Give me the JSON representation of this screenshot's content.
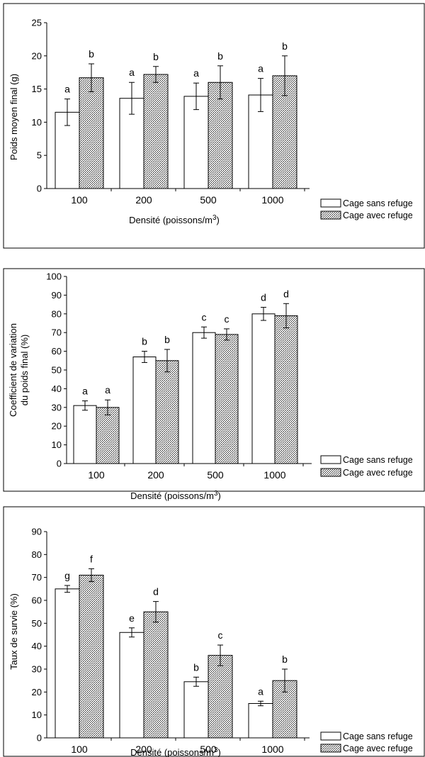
{
  "legend": {
    "open": "Cage sans refuge",
    "hatched": "Cage avec refuge"
  },
  "chart_data": [
    {
      "type": "bar",
      "categories": [
        "100",
        "200",
        "500",
        "1000"
      ],
      "ylabel": [
        "Poids moyen final (g)"
      ],
      "xlabel": "Densité (poissons/m",
      "xlabel_sup": "3",
      "xlabel_tail": ")",
      "ylim": [
        0,
        25
      ],
      "yticks": [
        0,
        5,
        10,
        15,
        20,
        25
      ],
      "series": [
        {
          "name": "Cage sans refuge",
          "values": [
            11.5,
            13.6,
            13.9,
            14.1
          ],
          "errors": [
            2.0,
            2.4,
            2.0,
            2.5
          ],
          "letters": [
            "a",
            "a",
            "a",
            "a"
          ]
        },
        {
          "name": "Cage avec refuge",
          "values": [
            16.7,
            17.2,
            16.0,
            17.0
          ],
          "errors": [
            2.1,
            1.2,
            2.5,
            3.0
          ],
          "letters": [
            "b",
            "b",
            "b",
            "b"
          ]
        }
      ],
      "legend_position": "bottom-right",
      "grid": false
    },
    {
      "type": "bar",
      "categories": [
        "100",
        "200",
        "500",
        "1000"
      ],
      "ylabel": [
        "Coefficient de variation",
        "du poids final (%)"
      ],
      "xlabel": "Densité (poissons/m",
      "xlabel_sup": "3",
      "xlabel_tail": ")",
      "ylim": [
        0,
        100
      ],
      "yticks": [
        0,
        10,
        20,
        30,
        40,
        50,
        60,
        70,
        80,
        90,
        100
      ],
      "series": [
        {
          "name": "Cage sans refuge",
          "values": [
            31,
            57,
            70,
            80
          ],
          "errors": [
            2.5,
            3,
            3,
            3.5
          ],
          "letters": [
            "a",
            "b",
            "c",
            "d"
          ]
        },
        {
          "name": "Cage avec refuge",
          "values": [
            30,
            55,
            69,
            79
          ],
          "errors": [
            4,
            6,
            3,
            6.5
          ],
          "letters": [
            "a",
            "b",
            "c",
            "d"
          ]
        }
      ],
      "legend_position": "bottom-right",
      "grid": false
    },
    {
      "type": "bar",
      "categories": [
        "100",
        "200",
        "500",
        "1000"
      ],
      "ylabel": [
        "Taux de survie (%)"
      ],
      "xlabel": "Densité (poissons/m",
      "xlabel_sup": "3",
      "xlabel_tail": ")",
      "ylim": [
        0,
        90
      ],
      "yticks": [
        0,
        10,
        20,
        30,
        40,
        50,
        60,
        70,
        80,
        90
      ],
      "series": [
        {
          "name": "Cage sans refuge",
          "values": [
            65,
            46,
            24.5,
            15
          ],
          "errors": [
            1.5,
            2,
            2,
            1
          ],
          "letters": [
            "g",
            "e",
            "b",
            "a"
          ]
        },
        {
          "name": "Cage avec refuge",
          "values": [
            71,
            55,
            36,
            25
          ],
          "errors": [
            2.8,
            4.5,
            4.5,
            5
          ],
          "letters": [
            "f",
            "d",
            "c",
            "b"
          ]
        }
      ],
      "legend_position": "bottom-right",
      "grid": false
    }
  ]
}
